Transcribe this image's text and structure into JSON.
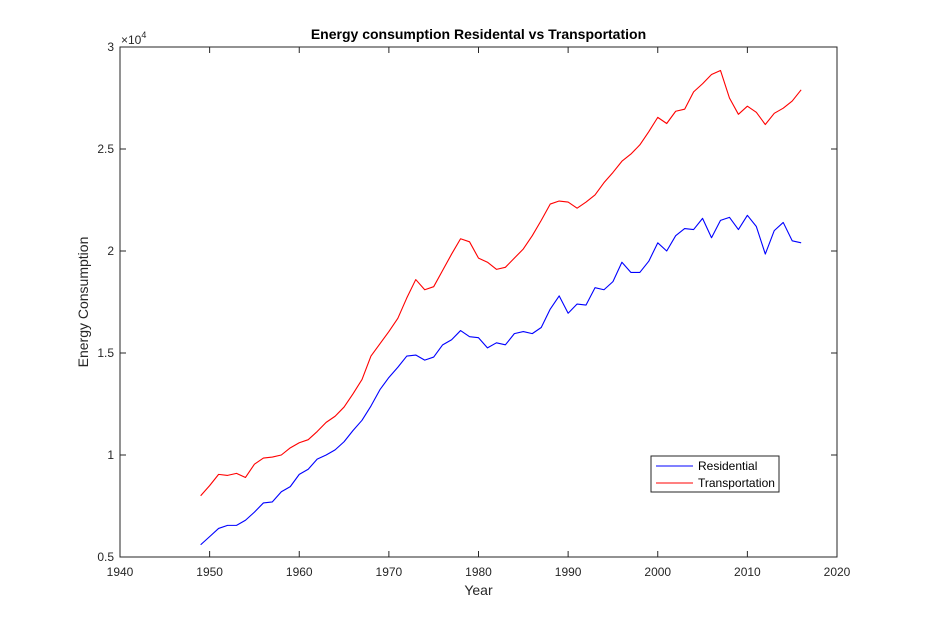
{
  "chart_data": {
    "type": "line",
    "title": "Energy consumption Residental vs Transportation",
    "xlabel": "Year",
    "ylabel": "Energy Consumption",
    "xlim": [
      1940,
      2020
    ],
    "ylim": [
      5000,
      30000
    ],
    "xticks": [
      1940,
      1950,
      1960,
      1970,
      1980,
      1990,
      2000,
      2010,
      2020
    ],
    "xtick_labels": [
      "1940",
      "1950",
      "1960",
      "1970",
      "1980",
      "1990",
      "2000",
      "2010",
      "2020"
    ],
    "yticks": [
      5000,
      10000,
      15000,
      20000,
      25000,
      30000
    ],
    "ytick_labels": [
      "0.5",
      "1",
      "1.5",
      "2",
      "2.5",
      "3"
    ],
    "y_exponent_base": "×10",
    "y_exponent_power": "4",
    "grid": false,
    "legend_placement": "lower-right",
    "x": [
      1949,
      1950,
      1951,
      1952,
      1953,
      1954,
      1955,
      1956,
      1957,
      1958,
      1959,
      1960,
      1961,
      1962,
      1963,
      1964,
      1965,
      1966,
      1967,
      1968,
      1969,
      1970,
      1971,
      1972,
      1973,
      1974,
      1975,
      1976,
      1977,
      1978,
      1979,
      1980,
      1981,
      1982,
      1983,
      1984,
      1985,
      1986,
      1987,
      1988,
      1989,
      1990,
      1991,
      1992,
      1993,
      1994,
      1995,
      1996,
      1997,
      1998,
      1999,
      2000,
      2001,
      2002,
      2003,
      2004,
      2005,
      2006,
      2007,
      2008,
      2009,
      2010,
      2011,
      2012,
      2013,
      2014,
      2015,
      2016
    ],
    "series": [
      {
        "name": "Residential",
        "color": "#0000ff",
        "values": [
          5600,
          6000,
          6400,
          6550,
          6550,
          6800,
          7200,
          7650,
          7700,
          8200,
          8450,
          9050,
          9300,
          9800,
          10000,
          10250,
          10650,
          11200,
          11700,
          12400,
          13200,
          13800,
          14300,
          14850,
          14900,
          14650,
          14800,
          15400,
          15650,
          16100,
          15800,
          15750,
          15250,
          15500,
          15400,
          15950,
          16050,
          15950,
          16250,
          17150,
          17800,
          16950,
          17400,
          17350,
          18200,
          18100,
          18500,
          19450,
          18950,
          18950,
          19500,
          20400,
          20000,
          20750,
          21100,
          21050,
          21600,
          20650,
          21500,
          21650,
          21050,
          21750,
          21200,
          19850,
          21000,
          21400,
          20500,
          20400
        ]
      },
      {
        "name": "Transportation",
        "color": "#ff0000",
        "values": [
          8000,
          8500,
          9050,
          9000,
          9100,
          8900,
          9550,
          9850,
          9900,
          10000,
          10350,
          10600,
          10750,
          11150,
          11600,
          11900,
          12350,
          13000,
          13700,
          14850,
          15450,
          16050,
          16700,
          17700,
          18600,
          18100,
          18250,
          19050,
          19850,
          20600,
          20450,
          19650,
          19450,
          19100,
          19200,
          19650,
          20100,
          20750,
          21500,
          22300,
          22450,
          22400,
          22100,
          22400,
          22750,
          23350,
          23850,
          24400,
          24750,
          25200,
          25850,
          26550,
          26250,
          26850,
          26950,
          27800,
          28200,
          28650,
          28850,
          27500,
          26700,
          27100,
          26800,
          26200,
          26750,
          27000,
          27350,
          27900
        ]
      }
    ]
  }
}
